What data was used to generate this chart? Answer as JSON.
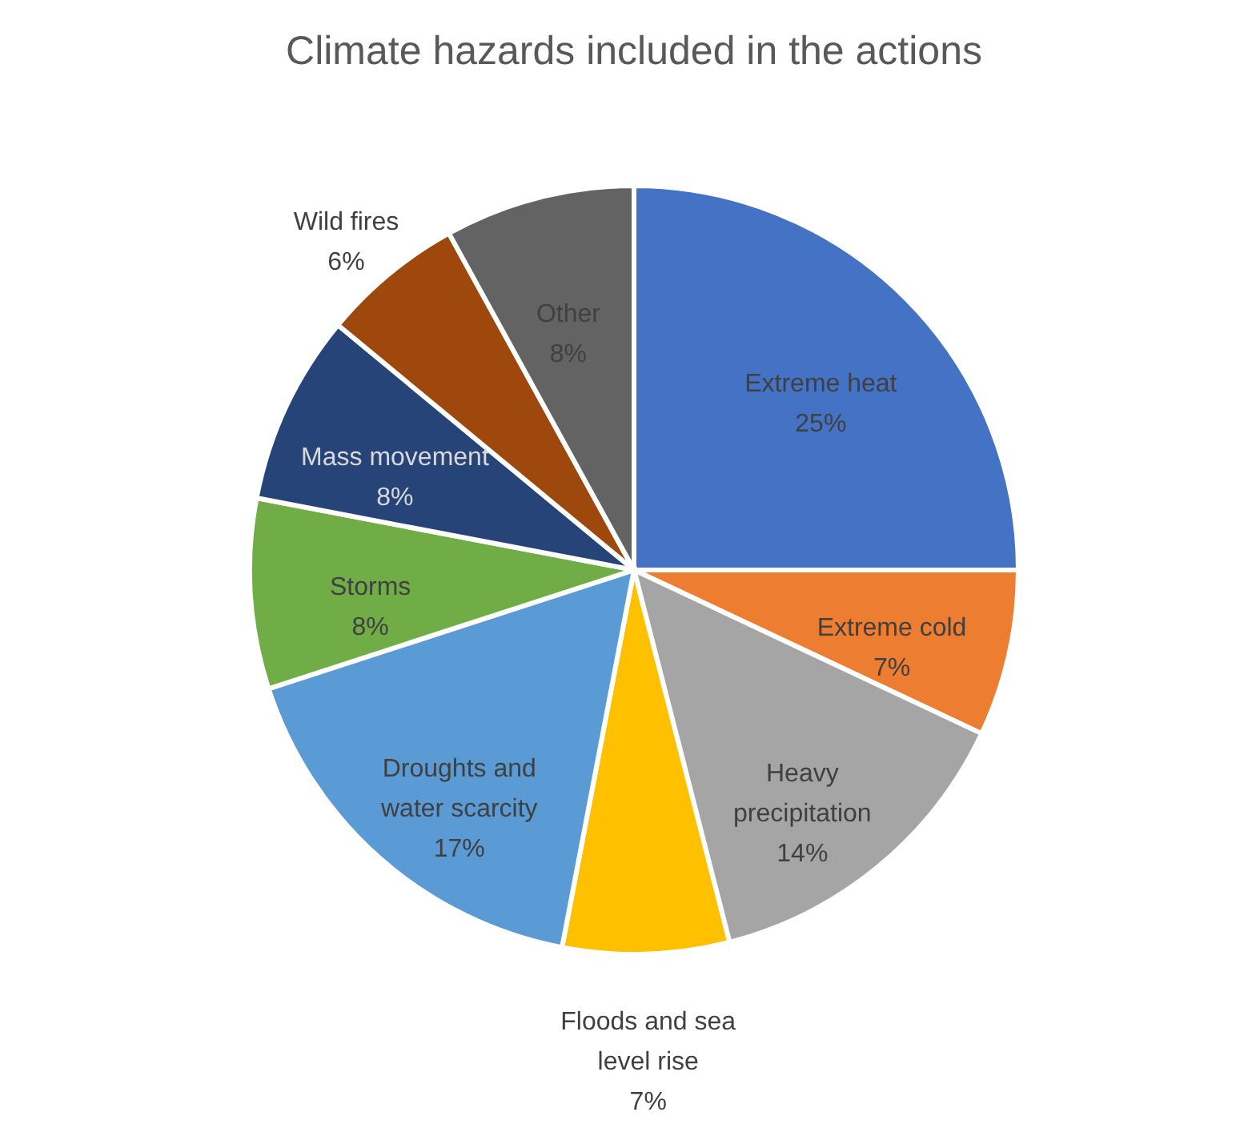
{
  "chart_data": {
    "type": "pie",
    "title": "Climate hazards included in the actions",
    "categories": [
      "Extreme heat",
      "Extreme cold",
      "Heavy precipitation",
      "Floods and sea level rise",
      "Droughts and water scarcity",
      "Storms",
      "Mass movement",
      "Wild fires",
      "Other"
    ],
    "values": [
      25,
      7,
      14,
      7,
      17,
      8,
      8,
      6,
      8
    ],
    "value_labels": [
      "25%",
      "7%",
      "14%",
      "7%",
      "17%",
      "8%",
      "8%",
      "6%",
      "8%"
    ],
    "colors": [
      "#4472c4",
      "#ed7d31",
      "#a5a5a5",
      "#ffc000",
      "#5b9bd5",
      "#70ad47",
      "#264478",
      "#9e480e",
      "#636363"
    ],
    "legend": false
  }
}
